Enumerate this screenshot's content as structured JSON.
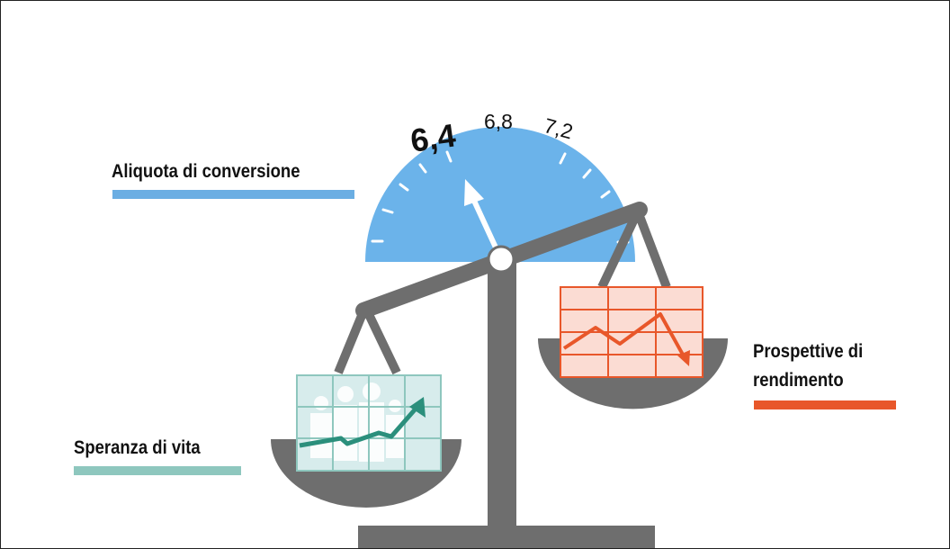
{
  "gauge": {
    "ticks": [
      "6,4",
      "6,8",
      "7,2"
    ],
    "color": "#6bb3ea"
  },
  "labels": {
    "aliquota": "Aliquota di conversione",
    "speranza": "Speranza di vita",
    "prospettive_line1": "Prospettive di",
    "prospettive_line2": "rendimento"
  },
  "colors": {
    "aliquota_bar": "#6baee3",
    "speranza_bar": "#8ec7be",
    "prospettive_bar": "#e8572a",
    "scale_gray": "#6e6e6e",
    "chart_red": "#e8572a",
    "chart_teal": "#2b8f7c"
  },
  "icons": [
    "balance-scale-icon",
    "people-family-icon",
    "trend-up-arrow-icon",
    "trend-down-arrow-icon",
    "gauge-icon"
  ]
}
